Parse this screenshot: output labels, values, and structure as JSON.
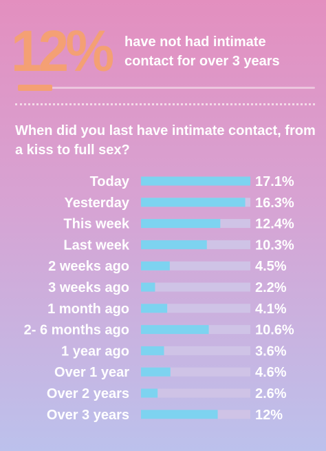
{
  "header": {
    "stat": "12%",
    "stat_text": "have not had intimate contact for over 3 years"
  },
  "question": "When did you last have intimate contact, from a kiss to full sex?",
  "colors": {
    "bar": "#7dd3f0",
    "track": "#cfc3e6",
    "accent": "#f4a074",
    "text": "#ffffff"
  },
  "chart_data": {
    "type": "bar",
    "orientation": "horizontal",
    "categories": [
      "Today",
      "Yesterday",
      "This week",
      "Last week",
      "2 weeks ago",
      "3 weeks ago",
      "1 month ago",
      "2- 6 months ago",
      "1 year ago",
      "Over 1 year",
      "Over 2 years",
      "Over 3 years"
    ],
    "values": [
      17.1,
      16.3,
      12.4,
      10.3,
      4.5,
      2.2,
      4.1,
      10.6,
      3.6,
      4.6,
      2.6,
      12
    ],
    "value_labels": [
      "17.1%",
      "16.3%",
      "12.4%",
      "10.3%",
      "4.5%",
      "2.2%",
      "4.1%",
      "10.6%",
      "3.6%",
      "4.6%",
      "2.6%",
      "12%"
    ],
    "xlim": [
      0,
      17.1
    ],
    "grid": false,
    "legend": "none"
  }
}
